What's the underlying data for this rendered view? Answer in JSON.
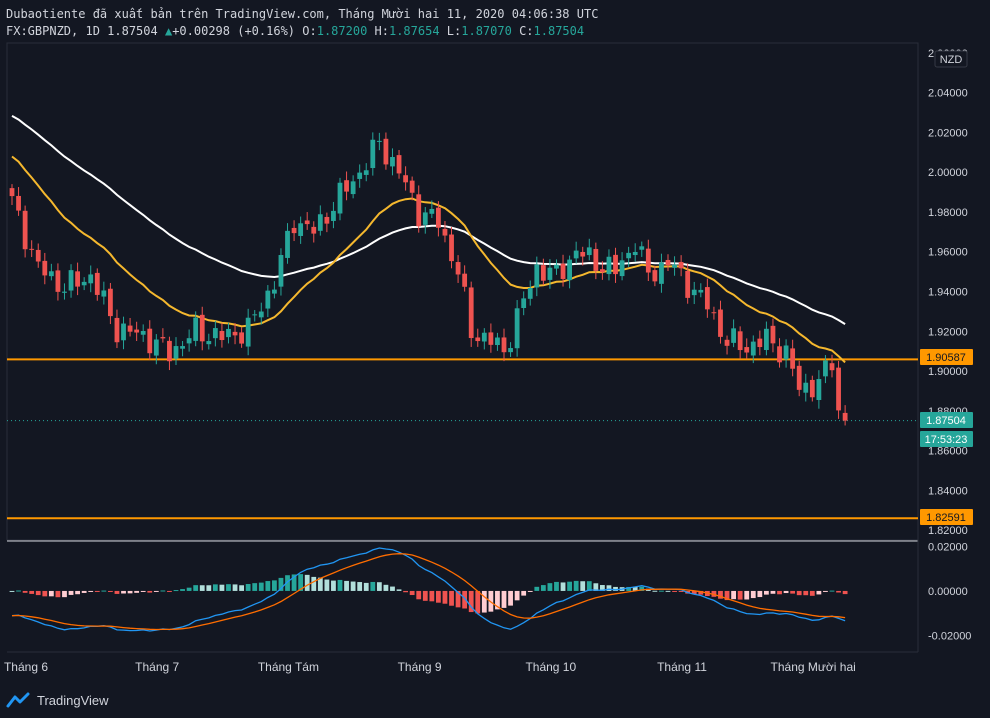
{
  "header": {
    "publisher": "Dubaotiente đã xuất bản trên TradingView.com, Tháng Mười hai 11, 2020 04:06:38 UTC",
    "symbol": "FX:GBPNZD, 1D",
    "last": "1.87504",
    "arrow": "▲",
    "change": "+0.00298 (+0.16%)",
    "o_label": "O:",
    "o": "1.87200",
    "h_label": "H:",
    "h": "1.87654",
    "l_label": "L:",
    "l": "1.87070",
    "c_label": "C:",
    "c": "1.87504"
  },
  "currency": "NZD",
  "price_tags": {
    "last_price": "1.87504",
    "countdown": "17:53:23",
    "resistance": "1.90587",
    "support": "1.82591"
  },
  "footer": {
    "brand": "TradingView"
  },
  "colors": {
    "bull": "#26a69a",
    "bear": "#ef5350",
    "ema_fast": "#f5b82e",
    "ema_slow": "#ffffff",
    "level": "#ff9800",
    "macd": "#2196f3",
    "signal": "#ff6d00"
  },
  "chart_data": {
    "type": "candlestick",
    "price_axis": {
      "ticks": [
        "2.06000",
        "2.04000",
        "2.02000",
        "2.00000",
        "1.98000",
        "1.96000",
        "1.94000",
        "1.92000",
        "1.90000",
        "1.88000",
        "1.86000",
        "1.84000",
        "1.82000"
      ],
      "range": [
        1.815,
        2.065
      ]
    },
    "x_ticks": [
      "Tháng 6",
      "Tháng 7",
      "Tháng Tám",
      "Tháng 9",
      "Tháng 10",
      "Tháng 11",
      "Tháng Mười hai"
    ],
    "x_tick_index": [
      0,
      20,
      40,
      60,
      80,
      100,
      120
    ],
    "horizontal_levels": [
      1.90587,
      1.82591
    ],
    "last_price": 1.87504,
    "close_anchors": [
      [
        0,
        1.985
      ],
      [
        4,
        1.952
      ],
      [
        8,
        1.942
      ],
      [
        12,
        1.948
      ],
      [
        16,
        1.921
      ],
      [
        20,
        1.918
      ],
      [
        24,
        1.909
      ],
      [
        28,
        1.92
      ],
      [
        32,
        1.917
      ],
      [
        36,
        1.921
      ],
      [
        40,
        1.945
      ],
      [
        43,
        1.976
      ],
      [
        46,
        1.97
      ],
      [
        50,
        1.988
      ],
      [
        53,
        2.0
      ],
      [
        56,
        2.015
      ],
      [
        59,
        2.0
      ],
      [
        62,
        1.98
      ],
      [
        65,
        1.975
      ],
      [
        68,
        1.95
      ],
      [
        70,
        1.92
      ],
      [
        73,
        1.915
      ],
      [
        75,
        1.91
      ],
      [
        78,
        1.935
      ],
      [
        80,
        1.952
      ],
      [
        83,
        1.948
      ],
      [
        86,
        1.96
      ],
      [
        89,
        1.955
      ],
      [
        92,
        1.95
      ],
      [
        95,
        1.965
      ],
      [
        97,
        1.948
      ],
      [
        100,
        1.955
      ],
      [
        103,
        1.944
      ],
      [
        106,
        1.933
      ],
      [
        109,
        1.915
      ],
      [
        112,
        1.912
      ],
      [
        115,
        1.916
      ],
      [
        118,
        1.909
      ],
      [
        120,
        1.891
      ],
      [
        123,
        1.894
      ],
      [
        125,
        1.905
      ],
      [
        126,
        1.88
      ],
      [
        127,
        1.875
      ]
    ],
    "indicators": {
      "macd_axis": {
        "ticks": [
          "0.02000",
          "0.00000",
          "-0.02000"
        ],
        "range": [
          -0.027,
          0.022
        ]
      }
    }
  }
}
